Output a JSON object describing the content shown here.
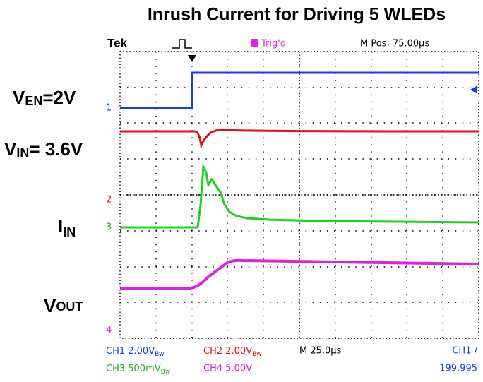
{
  "title": "Inrush Current for Driving 5 WLEDs",
  "header": {
    "brand": "Tek",
    "trigger_state": "Trig'd",
    "position": "M Pos: 75.00µs"
  },
  "trace_labels": [
    {
      "main": "V",
      "sub": "EN",
      "rest": "=2V"
    },
    {
      "main": "V",
      "sub": "IN",
      "rest": "= 3.6V"
    },
    {
      "main": "I",
      "sub": "IN",
      "rest": ""
    },
    {
      "main": "V",
      "sub": "OUT",
      "rest": ""
    }
  ],
  "channel_markers": [
    "1",
    "2",
    "3",
    "4"
  ],
  "footer": {
    "ch1": "CH1  2.00V",
    "ch1_bw": "Bw",
    "ch2": "CH2  2.00V",
    "ch2_bw": "Bw",
    "timebase": "M 25.0µs",
    "trigger_source": "CH1  ∕",
    "ch3": "CH3  500mV",
    "ch3_bw": "Bw",
    "ch4": "CH4  5.00V",
    "trigger_level": "199.995"
  }
}
